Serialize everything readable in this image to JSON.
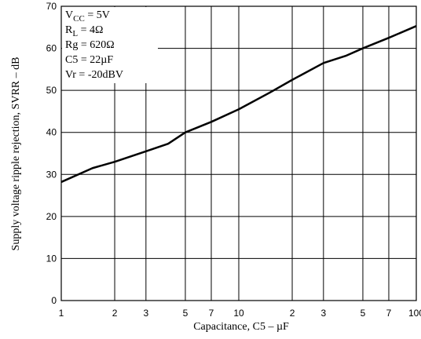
{
  "chart_data": {
    "type": "line",
    "xlabel": "Capacitance, C5  –  µF",
    "ylabel": "Supply voltage ripple rejection, SVRR  –  dB",
    "annotations": [
      [
        "V",
        "CC",
        " = 5V"
      ],
      [
        "R",
        "L",
        " = 4Ω"
      ],
      [
        "Rg = 620Ω"
      ],
      [
        "C5 = 22µF"
      ],
      [
        "Vr = -20dBV"
      ]
    ],
    "log_x": true,
    "grid": true,
    "xlim": [
      1,
      100
    ],
    "ylim": [
      0,
      70
    ],
    "xticks": [
      1,
      2,
      3,
      5,
      7,
      10,
      {
        "value": 20,
        "label": "2"
      },
      {
        "value": 30,
        "label": "3"
      },
      {
        "value": 50,
        "label": "5"
      },
      {
        "value": 70,
        "label": "7"
      },
      100
    ],
    "yticks": [
      0,
      10,
      20,
      30,
      40,
      50,
      60,
      70
    ],
    "x": [
      1,
      1.5,
      2,
      3,
      4,
      5,
      7,
      10,
      15,
      20,
      30,
      40,
      50,
      70,
      100
    ],
    "series": [
      {
        "color": "#000000",
        "values": [
          28.2,
          31.5,
          33,
          35.5,
          37.3,
          40,
          42.5,
          45.5,
          49.5,
          52.5,
          56.5,
          58.2,
          60,
          62.5,
          65.3
        ]
      }
    ]
  }
}
